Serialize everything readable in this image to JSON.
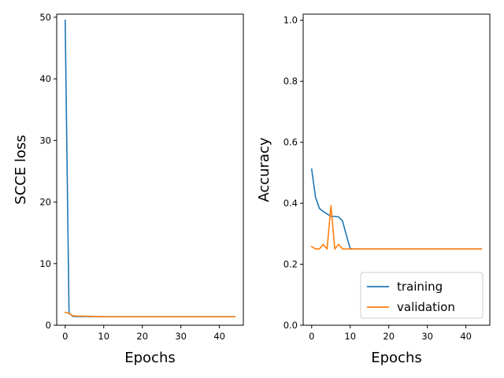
{
  "chart_data": [
    {
      "type": "line",
      "xlabel": "Epochs",
      "ylabel": "SCCE loss",
      "xlim": [
        -2.2,
        46.2
      ],
      "ylim": [
        0,
        50.5
      ],
      "xticks": [
        0,
        10,
        20,
        30,
        40
      ],
      "yticks": [
        0,
        10,
        20,
        30,
        40,
        50
      ],
      "tick_labels_x": [
        "0",
        "10",
        "20",
        "30",
        "40"
      ],
      "tick_labels_y": [
        "0",
        "10",
        "20",
        "30",
        "40",
        "50"
      ],
      "grid": false,
      "series": [
        {
          "name": "training",
          "color": "#1f77b4",
          "x": [
            0,
            1,
            2,
            3,
            4,
            5,
            6,
            7,
            8,
            9,
            10,
            11,
            12,
            13,
            14,
            15,
            16,
            17,
            18,
            19,
            20,
            21,
            22,
            23,
            24,
            25,
            26,
            27,
            28,
            29,
            30,
            31,
            32,
            33,
            34,
            35,
            36,
            37,
            38,
            39,
            40,
            41,
            42,
            43,
            44
          ],
          "values": [
            49.5,
            1.9,
            1.45,
            1.42,
            1.41,
            1.41,
            1.4,
            1.4,
            1.39,
            1.39,
            1.39,
            1.39,
            1.39,
            1.39,
            1.39,
            1.39,
            1.39,
            1.39,
            1.39,
            1.39,
            1.39,
            1.39,
            1.39,
            1.39,
            1.39,
            1.39,
            1.39,
            1.39,
            1.39,
            1.39,
            1.39,
            1.39,
            1.39,
            1.39,
            1.39,
            1.39,
            1.39,
            1.39,
            1.39,
            1.39,
            1.39,
            1.39,
            1.39,
            1.39,
            1.39
          ]
        },
        {
          "name": "validation",
          "color": "#ff7f0e",
          "x": [
            0,
            1,
            2,
            3,
            4,
            5,
            6,
            7,
            8,
            9,
            10,
            11,
            12,
            13,
            14,
            15,
            16,
            17,
            18,
            19,
            20,
            21,
            22,
            23,
            24,
            25,
            26,
            27,
            28,
            29,
            30,
            31,
            32,
            33,
            34,
            35,
            36,
            37,
            38,
            39,
            40,
            41,
            42,
            43,
            44
          ],
          "values": [
            2.1,
            1.9,
            1.55,
            1.5,
            1.48,
            1.46,
            1.45,
            1.45,
            1.42,
            1.4,
            1.39,
            1.39,
            1.39,
            1.39,
            1.39,
            1.39,
            1.39,
            1.39,
            1.39,
            1.39,
            1.39,
            1.39,
            1.39,
            1.39,
            1.39,
            1.39,
            1.39,
            1.39,
            1.39,
            1.39,
            1.39,
            1.39,
            1.39,
            1.39,
            1.39,
            1.39,
            1.39,
            1.39,
            1.39,
            1.39,
            1.39,
            1.39,
            1.39,
            1.39,
            1.39
          ]
        }
      ]
    },
    {
      "type": "line",
      "xlabel": "Epochs",
      "ylabel": "Accuracy",
      "xlim": [
        -2.2,
        46.2
      ],
      "ylim": [
        0,
        1.02
      ],
      "xticks": [
        0,
        10,
        20,
        30,
        40
      ],
      "yticks": [
        0.0,
        0.2,
        0.4,
        0.6,
        0.8,
        1.0
      ],
      "tick_labels_x": [
        "0",
        "10",
        "20",
        "30",
        "40"
      ],
      "tick_labels_y": [
        "0.0",
        "0.2",
        "0.4",
        "0.6",
        "0.8",
        "1.0"
      ],
      "grid": false,
      "legend": {
        "position": "lower-right",
        "entries": [
          "training",
          "validation"
        ]
      },
      "series": [
        {
          "name": "training",
          "color": "#1f77b4",
          "x": [
            0,
            1,
            2,
            3,
            4,
            5,
            6,
            7,
            8,
            9,
            10,
            11,
            12,
            13,
            14,
            15,
            16,
            17,
            18,
            19,
            20,
            21,
            22,
            23,
            24,
            25,
            26,
            27,
            28,
            29,
            30,
            31,
            32,
            33,
            34,
            35,
            36,
            37,
            38,
            39,
            40,
            41,
            42,
            43,
            44
          ],
          "values": [
            0.512,
            0.42,
            0.383,
            0.373,
            0.365,
            0.357,
            0.357,
            0.355,
            0.342,
            0.295,
            0.251,
            0.25,
            0.25,
            0.25,
            0.25,
            0.25,
            0.25,
            0.25,
            0.25,
            0.25,
            0.25,
            0.25,
            0.25,
            0.25,
            0.25,
            0.25,
            0.25,
            0.25,
            0.25,
            0.25,
            0.25,
            0.25,
            0.25,
            0.25,
            0.25,
            0.25,
            0.25,
            0.25,
            0.25,
            0.25,
            0.25,
            0.25,
            0.25,
            0.25,
            0.25
          ]
        },
        {
          "name": "validation",
          "color": "#ff7f0e",
          "x": [
            0,
            1,
            2,
            3,
            4,
            5,
            6,
            7,
            8,
            9,
            10,
            11,
            12,
            13,
            14,
            15,
            16,
            17,
            18,
            19,
            20,
            21,
            22,
            23,
            24,
            25,
            26,
            27,
            28,
            29,
            30,
            31,
            32,
            33,
            34,
            35,
            36,
            37,
            38,
            39,
            40,
            41,
            42,
            43,
            44
          ],
          "values": [
            0.258,
            0.25,
            0.25,
            0.265,
            0.25,
            0.392,
            0.25,
            0.265,
            0.25,
            0.25,
            0.25,
            0.25,
            0.25,
            0.25,
            0.25,
            0.25,
            0.25,
            0.25,
            0.25,
            0.25,
            0.25,
            0.25,
            0.25,
            0.25,
            0.25,
            0.25,
            0.25,
            0.25,
            0.25,
            0.25,
            0.25,
            0.25,
            0.25,
            0.25,
            0.25,
            0.25,
            0.25,
            0.25,
            0.25,
            0.25,
            0.25,
            0.25,
            0.25,
            0.25,
            0.25
          ]
        }
      ]
    }
  ]
}
